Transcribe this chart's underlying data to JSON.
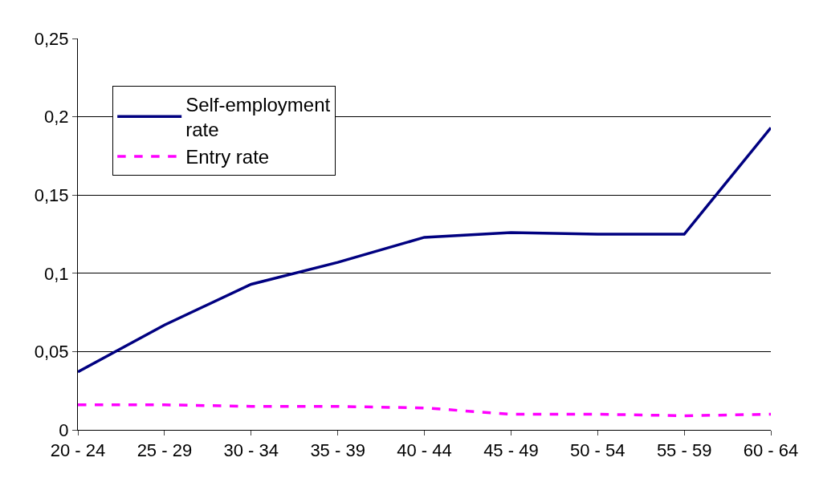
{
  "chart_data": {
    "type": "line",
    "categories": [
      "20 - 24",
      "25 - 29",
      "30 - 34",
      "35 - 39",
      "40 - 44",
      "45 - 49",
      "50 - 54",
      "55 - 59",
      "60 - 64"
    ],
    "series": [
      {
        "name": "Self-employment rate",
        "color": "#000080",
        "line_style": "solid",
        "values": [
          0.037,
          0.067,
          0.093,
          0.107,
          0.123,
          0.126,
          0.125,
          0.125,
          0.193
        ]
      },
      {
        "name": "Entry rate",
        "color": "#ff00ff",
        "line_style": "dashed",
        "values": [
          0.016,
          0.016,
          0.015,
          0.015,
          0.014,
          0.01,
          0.01,
          0.009,
          0.01
        ]
      }
    ],
    "ylim": [
      0,
      0.25
    ],
    "yticks": [
      0,
      {
        "value": 0.05,
        "label": "0,05"
      },
      {
        "value": 0.1,
        "label": "0,1"
      },
      {
        "value": 0.15,
        "label": "0,15"
      },
      {
        "value": 0.2,
        "label": "0,2"
      },
      {
        "value": 0.25,
        "label": "0,25"
      }
    ],
    "grid": "y",
    "legend": "top left",
    "marker": "none"
  }
}
